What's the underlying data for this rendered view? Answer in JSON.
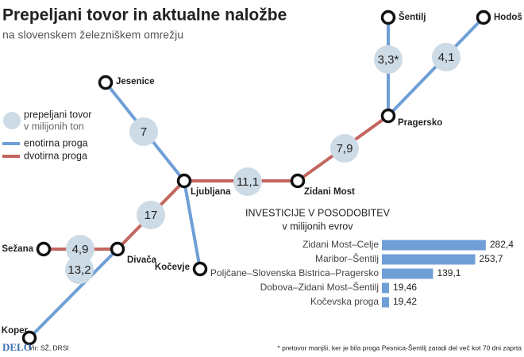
{
  "header": {
    "title": "Prepeljani tovor in aktualne naložbe",
    "subtitle": "na slovenskem železniškem omrežju"
  },
  "legend": {
    "volume_line1": "prepeljani tovor",
    "volume_line2": "v milijonih ton",
    "single_track": "enotirna proga",
    "double_track": "dvotirna proga",
    "single_color": "#6f9fd6",
    "double_color": "#c3665f",
    "volume_color": "#cddbe6"
  },
  "network": {
    "nodes": [
      {
        "label": "Šentilj"
      },
      {
        "label": "Hodoš"
      },
      {
        "label": "Pragersko"
      },
      {
        "label": "Jesenice"
      },
      {
        "label": "Ljubljana"
      },
      {
        "label": "Zidani Most"
      },
      {
        "label": "Divača"
      },
      {
        "label": "Sežana"
      },
      {
        "label": "Kočevje"
      },
      {
        "label": "Koper"
      }
    ],
    "edges": [
      {
        "from": "Šentilj",
        "to": "Pragersko",
        "kind": "single",
        "label": "3,3*"
      },
      {
        "from": "Hodoš",
        "to": "Pragersko",
        "kind": "single",
        "label": "4,1"
      },
      {
        "from": "Pragersko",
        "to": "Zidani Most",
        "kind": "double",
        "label": "7,9"
      },
      {
        "from": "Zidani Most",
        "to": "Ljubljana",
        "kind": "double",
        "label": "11,1"
      },
      {
        "from": "Ljubljana",
        "to": "Jesenice",
        "kind": "single",
        "label": "7"
      },
      {
        "from": "Ljubljana",
        "to": "Kočevje",
        "kind": "single"
      },
      {
        "from": "Ljubljana",
        "to": "Divača",
        "kind": "double",
        "label": "17"
      },
      {
        "from": "Divača",
        "to": "Sežana",
        "kind": "double",
        "label": "4,9"
      },
      {
        "from": "Divača",
        "to": "Koper",
        "kind": "single",
        "label": "13,2"
      }
    ]
  },
  "chart_data": {
    "type": "bar",
    "title": "INVESTICIJE V POSODOBITEV",
    "subtitle": "v milijonih evrov",
    "categories": [
      "Zidani Most–Celje",
      "Maribor–Šentilj",
      "Poljčane–Slovenska Bistrica–Pragersko",
      "Dobova–Zidani Most–Šentilj",
      "Kočevska proga"
    ],
    "values": [
      282.4,
      253.7,
      139.1,
      19.46,
      19.42
    ],
    "value_labels": [
      "282,4",
      "253,7",
      "139,1",
      "19,46",
      "19,42"
    ],
    "color": "#6f9fd6",
    "xlim": [
      0,
      300
    ]
  },
  "footer": {
    "brand": "DELO",
    "source": "Vir: SŽ, DRSI",
    "note": "* pretovor manjši, ker je bila proga Pesnica-Šentilj zaradi del več kot 70 dni zaprta"
  }
}
